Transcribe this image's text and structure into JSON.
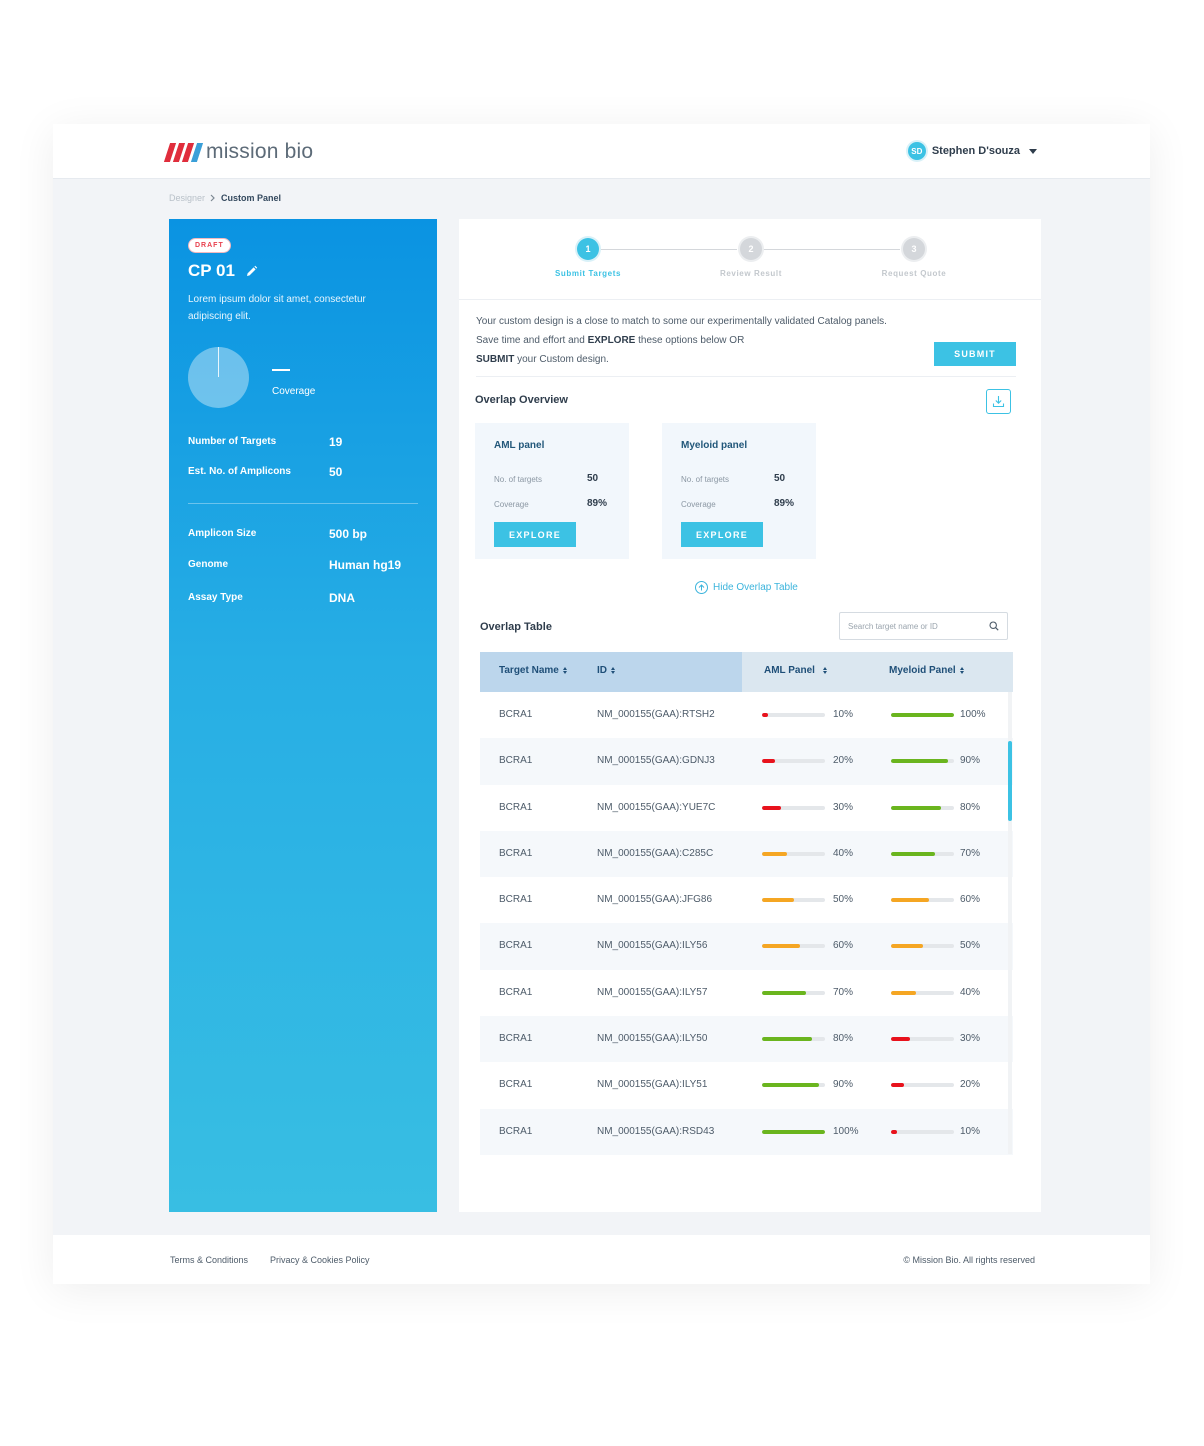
{
  "app": {
    "logo_text": "mission bio"
  },
  "user": {
    "initials": "SD",
    "name": "Stephen D'souza"
  },
  "breadcrumb": {
    "root": "Designer",
    "current": "Custom Panel"
  },
  "panel": {
    "status_badge": "DRAFT",
    "title": "CP 01",
    "description": "Lorem ipsum dolor sit amet, consectetur adipiscing elit.",
    "coverage_value": "—",
    "coverage_label": "Coverage",
    "stats": [
      {
        "label": "Number of Targets",
        "value": "19"
      },
      {
        "label": "Est. No. of Amplicons",
        "value": "50"
      },
      {
        "label": "Amplicon Size",
        "value": "500 bp"
      },
      {
        "label": "Genome",
        "value": "Human hg19"
      },
      {
        "label": "Assay Type",
        "value": "DNA"
      }
    ]
  },
  "stepper": {
    "steps": [
      {
        "num": "1",
        "label": "Submit Targets"
      },
      {
        "num": "2",
        "label": "Review Result"
      },
      {
        "num": "3",
        "label": "Request Quote"
      }
    ]
  },
  "intro": {
    "line1": "Your custom design is a close to match to some our experimentally validated Catalog panels.",
    "line2_pre": "Save time and effort and ",
    "line2_bold": "EXPLORE",
    "line2_post": " these options below OR",
    "line3_bold": "SUBMIT",
    "line3_post": " your Custom design.",
    "submit_label": "SUBMIT"
  },
  "overview": {
    "title": "Overlap Overview",
    "cards": [
      {
        "name": "AML panel",
        "targets_label": "No. of targets",
        "targets": "50",
        "coverage_label": "Coverage",
        "coverage": "89%",
        "button": "EXPLORE"
      },
      {
        "name": "Myeloid panel",
        "targets_label": "No. of targets",
        "targets": "50",
        "coverage_label": "Coverage",
        "coverage": "89%",
        "button": "EXPLORE"
      }
    ],
    "hide_link": "Hide Overlap Table"
  },
  "table": {
    "title": "Overlap Table",
    "search_placeholder": "Search target name or ID",
    "headers": [
      "Target Name",
      "ID",
      "AML Panel",
      "Myeloid Panel"
    ],
    "rows": [
      {
        "target": "BCRA1",
        "id": "NM_000155(GAA):RTSH2",
        "aml": "10%",
        "myeloid": "100%"
      },
      {
        "target": "BCRA1",
        "id": "NM_000155(GAA):GDNJ3",
        "aml": "20%",
        "myeloid": "90%"
      },
      {
        "target": "BCRA1",
        "id": "NM_000155(GAA):YUE7C",
        "aml": "30%",
        "myeloid": "80%"
      },
      {
        "target": "BCRA1",
        "id": "NM_000155(GAA):C285C",
        "aml": "40%",
        "myeloid": "70%"
      },
      {
        "target": "BCRA1",
        "id": "NM_000155(GAA):JFG86",
        "aml": "50%",
        "myeloid": "60%"
      },
      {
        "target": "BCRA1",
        "id": "NM_000155(GAA):ILY56",
        "aml": "60%",
        "myeloid": "50%"
      },
      {
        "target": "BCRA1",
        "id": "NM_000155(GAA):ILY57",
        "aml": "70%",
        "myeloid": "40%"
      },
      {
        "target": "BCRA1",
        "id": "NM_000155(GAA):ILY50",
        "aml": "80%",
        "myeloid": "30%"
      },
      {
        "target": "BCRA1",
        "id": "NM_000155(GAA):ILY51",
        "aml": "90%",
        "myeloid": "20%"
      },
      {
        "target": "BCRA1",
        "id": "NM_000155(GAA):RSD43",
        "aml": "100%",
        "myeloid": "10%"
      }
    ]
  },
  "colors": {
    "low": "#e8121c",
    "mid": "#f5a623",
    "high": "#6ab51e",
    "accent": "#3cc2e4"
  },
  "footer": {
    "terms": "Terms & Conditions",
    "privacy": "Privacy & Cookies Policy",
    "copyright": "© Mission Bio. All rights reserved"
  }
}
